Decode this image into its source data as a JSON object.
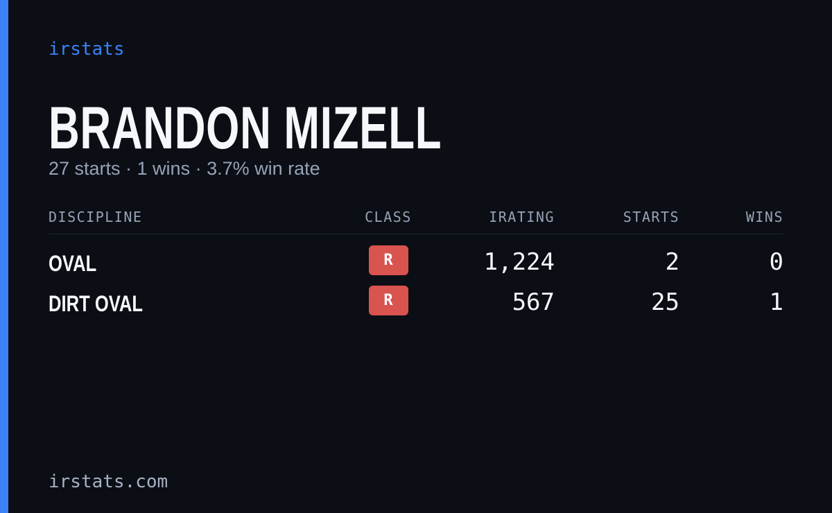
{
  "brand": "irstats",
  "player": {
    "name": "BRANDON MIZELL",
    "summary": "27 starts · 1 wins · 3.7% win rate"
  },
  "table": {
    "columns": [
      "DISCIPLINE",
      "CLASS",
      "IRATING",
      "STARTS",
      "WINS"
    ],
    "rows": [
      [
        "OVAL",
        "R",
        "1,224",
        "2",
        "0"
      ],
      [
        "DIRT OVAL",
        "R",
        "567",
        "25",
        "1"
      ]
    ]
  },
  "footer": "irstats.com"
}
